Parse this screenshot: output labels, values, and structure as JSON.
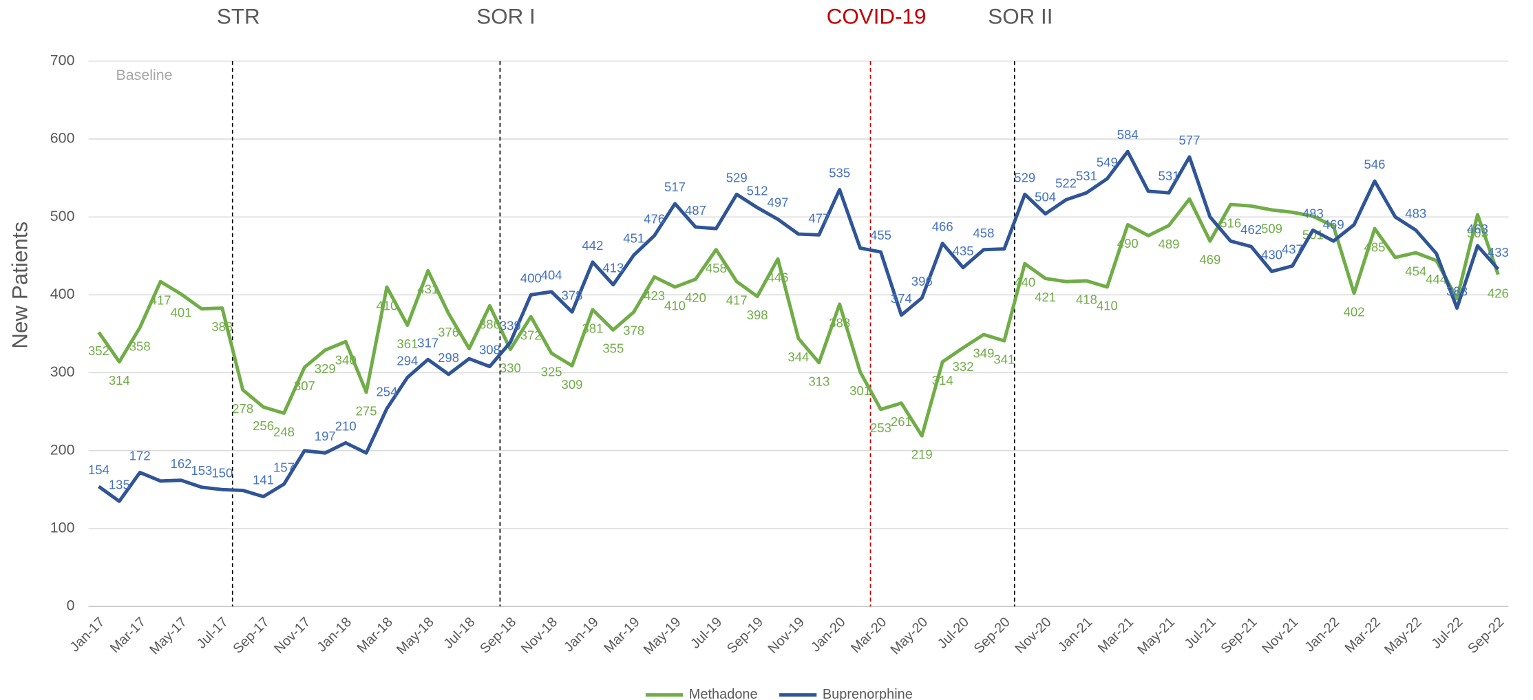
{
  "chart_data": {
    "type": "line",
    "y_axis_label": "New Patients",
    "baseline_label": "Baseline",
    "ylim": [
      0,
      700
    ],
    "yticks": [
      0,
      100,
      200,
      300,
      400,
      500,
      600,
      700
    ],
    "grid": true,
    "legend": "bottom",
    "annotations": [
      {
        "text": "STR",
        "at_index": 7,
        "color": "#595959",
        "line_color": "#000000"
      },
      {
        "text": "SOR I",
        "at_index": 20,
        "color": "#595959",
        "line_color": "#000000"
      },
      {
        "text": "COVID-19",
        "at_index": 38,
        "color": "#c00000",
        "line_color": "#c00000"
      },
      {
        "text": "SOR II",
        "at_index": 45,
        "color": "#595959",
        "line_color": "#000000"
      }
    ],
    "categories": [
      "Jan-17",
      null,
      "Mar-17",
      null,
      "May-17",
      null,
      "Jul-17",
      null,
      "Sep-17",
      null,
      "Nov-17",
      null,
      "Jan-18",
      null,
      "Mar-18",
      null,
      "May-18",
      null,
      "Jul-18",
      null,
      "Sep-18",
      null,
      "Nov-18",
      null,
      "Jan-19",
      null,
      "Mar-19",
      null,
      "May-19",
      null,
      "Jul-19",
      null,
      "Sep-19",
      null,
      "Nov-19",
      null,
      "Jan-20",
      null,
      "Mar-20",
      null,
      "May-20",
      null,
      "Jul-20",
      null,
      "Sep-20",
      null,
      "Nov-20",
      null,
      "Jan-21",
      null,
      "Mar-21",
      null,
      "May-21",
      null,
      "Jul-21",
      null,
      "Sep-21",
      null,
      "Nov-21",
      null,
      "Jan-22",
      null,
      "Mar-22",
      null,
      "May-22",
      null,
      "Jul-22",
      null,
      "Sep-22"
    ],
    "series": [
      {
        "name": "Methadone",
        "color": "#70ad47",
        "label_color": "#70ad47",
        "label_side": "below",
        "values": [
          352,
          314,
          358,
          417,
          401,
          382,
          383,
          278,
          256,
          248,
          307,
          329,
          340,
          275,
          410,
          361,
          431,
          376,
          331,
          386,
          330,
          372,
          325,
          309,
          381,
          355,
          378,
          423,
          410,
          420,
          458,
          417,
          398,
          446,
          344,
          313,
          388,
          301,
          253,
          261,
          219,
          314,
          332,
          349,
          341,
          440,
          421,
          417,
          418,
          410,
          490,
          476,
          489,
          523,
          469,
          516,
          514,
          509,
          506,
          501,
          488,
          402,
          485,
          448,
          454,
          444,
          395,
          503,
          426
        ],
        "value_labels": [
          "352",
          "314",
          "358",
          "417",
          "401",
          null,
          "383",
          "278",
          "256",
          "248",
          "307",
          "329",
          "340",
          "275",
          "410",
          "361",
          "431",
          "376",
          null,
          "386",
          "330",
          "372",
          "325",
          "309",
          "381",
          "355",
          "378",
          "423",
          "410",
          "420",
          "458",
          "417",
          "398",
          "446",
          "344",
          "313",
          "388",
          "301",
          "253",
          "261",
          "219",
          "314",
          "332",
          "349",
          "341",
          "440",
          "421",
          null,
          "418",
          "410",
          "490",
          null,
          "489",
          null,
          "469",
          "516",
          null,
          "509",
          null,
          "501",
          null,
          "402",
          "485",
          null,
          "454",
          "444",
          null,
          "503",
          "426"
        ]
      },
      {
        "name": "Buprenorphine",
        "color": "#2f5597",
        "label_color": "#4472c4",
        "label_side": "above",
        "values": [
          154,
          135,
          172,
          161,
          162,
          153,
          150,
          149,
          141,
          157,
          200,
          197,
          210,
          197,
          254,
          294,
          317,
          298,
          318,
          308,
          339,
          400,
          404,
          378,
          442,
          413,
          451,
          476,
          517,
          487,
          485,
          529,
          512,
          497,
          478,
          477,
          535,
          460,
          455,
          374,
          396,
          466,
          435,
          458,
          459,
          529,
          504,
          522,
          531,
          549,
          584,
          533,
          531,
          577,
          500,
          469,
          462,
          430,
          437,
          483,
          469,
          490,
          546,
          500,
          483,
          453,
          383,
          463,
          433
        ],
        "value_labels": [
          "154",
          "135",
          "172",
          null,
          "162",
          "153",
          "150",
          null,
          "141",
          "157",
          null,
          "197",
          "210",
          null,
          "254",
          "294",
          "317",
          "298",
          null,
          "308",
          "339",
          "400",
          "404",
          "378",
          "442",
          "413",
          "451",
          "476",
          "517",
          "487",
          null,
          "529",
          "512",
          "497",
          null,
          "477",
          "535",
          null,
          "455",
          "374",
          "396",
          "466",
          "435",
          "458",
          null,
          "529",
          "504",
          "522",
          "531",
          "549",
          "584",
          null,
          "531",
          "577",
          null,
          null,
          "462",
          "430",
          "437",
          "483",
          "469",
          null,
          "546",
          null,
          "483",
          null,
          "383",
          "463",
          "433"
        ]
      }
    ]
  }
}
